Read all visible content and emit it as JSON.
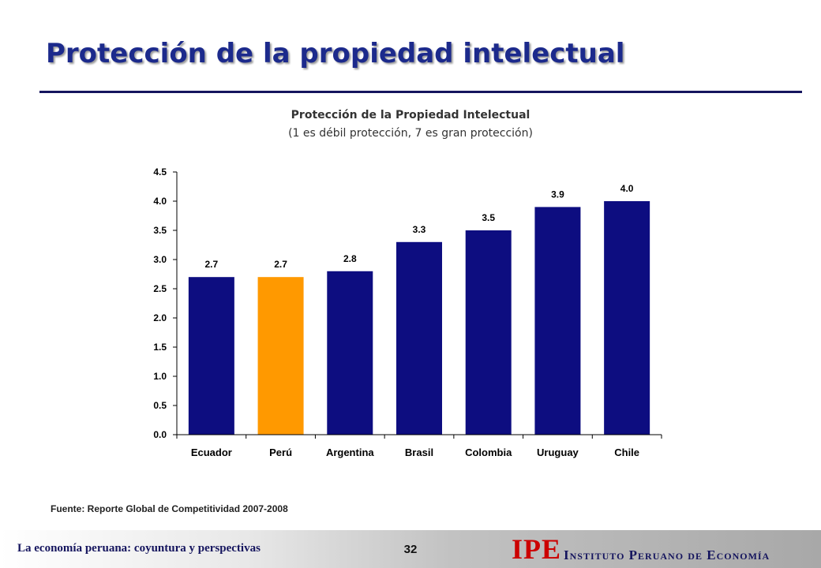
{
  "slide": {
    "title": "Protección de la propiedad intelectual",
    "source": "Fuente: Reporte Global de Competitividad 2007-2008",
    "footer_text": "La economía peruana: coyuntura y perspectivas",
    "page_number": "32",
    "logo_text": "IPE",
    "institute_name": "Instituto Peruano de Economía"
  },
  "chart_data": {
    "type": "bar",
    "title": "Protección de la Propiedad Intelectual",
    "subtitle": "(1 es débil protección, 7 es gran protección)",
    "categories": [
      "Ecuador",
      "Perú",
      "Argentina",
      "Brasil",
      "Colombia",
      "Uruguay",
      "Chile"
    ],
    "values": [
      2.7,
      2.7,
      2.8,
      3.3,
      3.5,
      3.9,
      4.0
    ],
    "data_labels": [
      "2.7",
      "2.7",
      "2.8",
      "3.3",
      "3.5",
      "3.9",
      "4.0"
    ],
    "ylim": [
      0,
      4.5
    ],
    "yticks": [
      "0.0",
      "0.5",
      "1.0",
      "1.5",
      "2.0",
      "2.5",
      "3.0",
      "3.5",
      "4.0",
      "4.5"
    ],
    "xlabel": "",
    "ylabel": "",
    "grid": false,
    "legend": "none",
    "colors": {
      "default": "#0d0d80",
      "highlight": "#ff9900",
      "highlight_index": 1
    }
  }
}
